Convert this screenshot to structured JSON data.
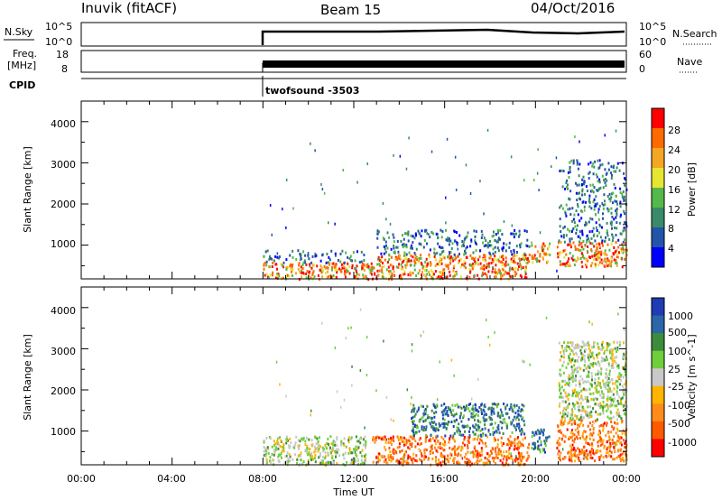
{
  "header": {
    "station": "Inuvik (fitACF)",
    "beam": "Beam 15",
    "date": "04/Oct/2016"
  },
  "top_panels": {
    "nsky_label": "N.Sky",
    "nsky_ticks": [
      "10^5",
      "10^0"
    ],
    "nsearch_label": "N.Search",
    "nsearch_ticks": [
      "10^5",
      "10^0"
    ],
    "freq_label_1": "Freq.",
    "freq_label_2": "[MHz]",
    "freq_ticks": [
      "18",
      "8"
    ],
    "nave_label": "Nave",
    "nave_ticks": [
      "60",
      "0"
    ],
    "cpid_label": "CPID",
    "cpid_value": "twofsound -3503"
  },
  "x_axis": {
    "label": "Time UT",
    "ticks": [
      "00:00",
      "04:00",
      "08:00",
      "12:00",
      "16:00",
      "20:00",
      "00:00"
    ]
  },
  "colors": {
    "power": [
      "#0000ff",
      "#2255aa",
      "#3a8a6a",
      "#55b84a",
      "#e6e632",
      "#f5a623",
      "#ff6a00",
      "#ff0000"
    ],
    "velocity": [
      "#ff0000",
      "#ff5a00",
      "#ff8c1a",
      "#ffb400",
      "#c8c8c8",
      "#6fce3a",
      "#3c8c3c",
      "#2a66a8",
      "#1e3cb4"
    ]
  },
  "chart_data": [
    {
      "type": "heatmap",
      "title": "",
      "xlabel": "Time UT",
      "ylabel": "Slant Range [km]",
      "x_ticks": [
        "00:00",
        "04:00",
        "08:00",
        "12:00",
        "16:00",
        "20:00",
        "00:00"
      ],
      "y_ticks": [
        "1000",
        "2000",
        "3000",
        "4000"
      ],
      "ylim": [
        180,
        4500
      ],
      "colorbar": {
        "label": "Power [dB]",
        "ticks": [
          "4",
          "8",
          "12",
          "16",
          "20",
          "24",
          "28"
        ],
        "range": [
          0,
          30
        ]
      },
      "data_start": "08:00",
      "regions": [
        {
          "t0": 8.0,
          "t1": 13.0,
          "r0": 200,
          "r1": 600,
          "level": "high"
        },
        {
          "t0": 8.0,
          "t1": 12.5,
          "r0": 600,
          "r1": 900,
          "level": "low"
        },
        {
          "t0": 13.0,
          "t1": 19.7,
          "r0": 200,
          "r1": 800,
          "level": "high"
        },
        {
          "t0": 13.0,
          "t1": 19.7,
          "r0": 800,
          "r1": 1400,
          "level": "low"
        },
        {
          "t0": 19.8,
          "t1": 20.6,
          "r0": 600,
          "r1": 1100,
          "level": "high"
        },
        {
          "t0": 20.9,
          "t1": 24.0,
          "r0": 500,
          "r1": 1100,
          "level": "high"
        },
        {
          "t0": 21.0,
          "t1": 24.0,
          "r0": 1100,
          "r1": 3100,
          "level": "low"
        }
      ]
    },
    {
      "type": "heatmap",
      "title": "",
      "xlabel": "Time UT",
      "ylabel": "Slant Range [km]",
      "x_ticks": [
        "00:00",
        "04:00",
        "08:00",
        "12:00",
        "16:00",
        "20:00",
        "00:00"
      ],
      "y_ticks": [
        "1000",
        "2000",
        "3000",
        "4000"
      ],
      "ylim": [
        180,
        4500
      ],
      "colorbar": {
        "label": "Velocity [m s^-1]",
        "ticks": [
          "1000",
          "500",
          "100",
          "25",
          "-25",
          "-100",
          "-500",
          "-1000"
        ],
        "range": [
          -1000,
          1000
        ]
      },
      "data_start": "08:00",
      "regions": [
        {
          "t0": 8.0,
          "t1": 12.5,
          "r0": 200,
          "r1": 900,
          "level": "near-zero"
        },
        {
          "t0": 12.8,
          "t1": 19.7,
          "r0": 200,
          "r1": 900,
          "level": "negative"
        },
        {
          "t0": 14.5,
          "t1": 19.5,
          "r0": 900,
          "r1": 1700,
          "level": "positive"
        },
        {
          "t0": 19.8,
          "t1": 20.6,
          "r0": 500,
          "r1": 1100,
          "level": "positive"
        },
        {
          "t0": 20.9,
          "t1": 24.0,
          "r0": 300,
          "r1": 1300,
          "level": "negative"
        },
        {
          "t0": 21.0,
          "t1": 24.0,
          "r0": 1300,
          "r1": 3200,
          "level": "near-zero"
        }
      ]
    }
  ]
}
